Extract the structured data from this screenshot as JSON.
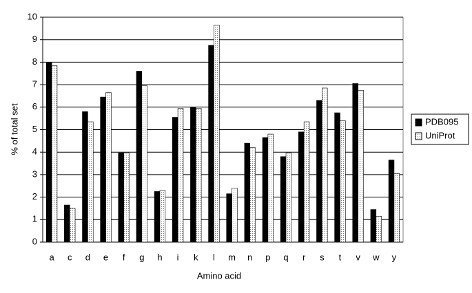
{
  "chart_data": {
    "type": "bar",
    "x_label": "Amino acid",
    "y_label": "% of total set",
    "categories": [
      "a",
      "c",
      "d",
      "e",
      "f",
      "g",
      "h",
      "i",
      "k",
      "l",
      "m",
      "n",
      "p",
      "q",
      "r",
      "s",
      "t",
      "v",
      "w",
      "y"
    ],
    "series": [
      {
        "name": "PDB095",
        "color": "#000000",
        "values": [
          8.0,
          1.65,
          5.8,
          6.45,
          3.97,
          7.6,
          2.25,
          5.55,
          6.0,
          8.75,
          2.15,
          4.4,
          4.65,
          3.8,
          4.9,
          6.3,
          5.75,
          7.05,
          1.45,
          3.65
        ]
      },
      {
        "name": "UniProt",
        "color": "#ffffff",
        "pattern": "dotted",
        "values": [
          7.85,
          1.5,
          5.35,
          6.65,
          3.97,
          6.95,
          2.3,
          5.95,
          5.95,
          9.65,
          2.4,
          4.2,
          4.8,
          3.97,
          5.35,
          6.85,
          5.4,
          6.75,
          1.15,
          3.05
        ]
      }
    ],
    "ylim": [
      0,
      10
    ],
    "yticks": [
      0,
      1,
      2,
      3,
      4,
      5,
      6,
      7,
      8,
      9,
      10
    ],
    "grid": true,
    "legend": "right"
  }
}
